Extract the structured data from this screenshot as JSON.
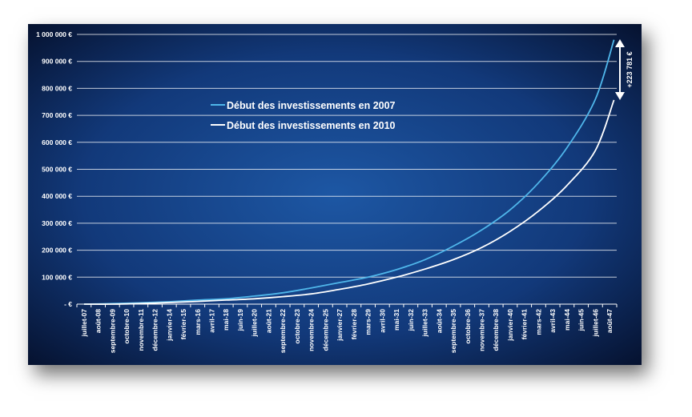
{
  "chart_data": {
    "type": "line",
    "title": "",
    "xlabel": "",
    "ylabel": "",
    "ylim": [
      0,
      1000000
    ],
    "grid": true,
    "legend_placement": "center-left",
    "y_ticks": [
      "1 000 000 €",
      "900 000 €",
      "800 000 €",
      "700 000 €",
      "600 000 €",
      "500 000 €",
      "400 000 €",
      "300 000 €",
      "200 000 €",
      "100 000 €",
      "- €"
    ],
    "x_ticks": [
      "juillet-07",
      "août-08",
      "septembre-09",
      "octobre-10",
      "novembre-11",
      "décembre-12",
      "janvier-14",
      "février-15",
      "mars-16",
      "avril-17",
      "mai-18",
      "juin-19",
      "juillet-20",
      "août-21",
      "septembre-22",
      "octobre-23",
      "novembre-24",
      "décembre-25",
      "janvier-27",
      "février-28",
      "mars-29",
      "avril-30",
      "mai-31",
      "juin-32",
      "juillet-33",
      "août-34",
      "septembre-35",
      "octobre-36",
      "novembre-37",
      "décembre-38",
      "janvier-40",
      "février-41",
      "mars-42",
      "avril-43",
      "mai-44",
      "juin-45",
      "juillet-46",
      "août-47"
    ],
    "series": [
      {
        "name": "Début des investissements en 2007",
        "color": "#4fb6ea",
        "x": [
          "juillet-07",
          "septembre-09",
          "novembre-11",
          "janvier-14",
          "mars-16",
          "mai-18",
          "juillet-20",
          "septembre-22",
          "novembre-24",
          "janvier-27",
          "mars-29",
          "mai-31",
          "juillet-33",
          "septembre-35",
          "novembre-37",
          "janvier-40",
          "mars-42",
          "mai-44",
          "juillet-46",
          "décembre-47"
        ],
        "values": [
          0,
          2000,
          5000,
          9000,
          15000,
          20000,
          30000,
          42000,
          60000,
          80000,
          100000,
          128000,
          165000,
          215000,
          275000,
          350000,
          450000,
          580000,
          760000,
          980000
        ]
      },
      {
        "name": "Début des investissements en 2010",
        "color": "#ffffff",
        "x": [
          "juillet-07",
          "septembre-09",
          "novembre-11",
          "janvier-14",
          "mars-16",
          "mai-18",
          "juillet-20",
          "septembre-22",
          "novembre-24",
          "janvier-27",
          "mars-29",
          "mai-31",
          "juillet-33",
          "septembre-35",
          "novembre-37",
          "janvier-40",
          "mars-42",
          "mai-44",
          "juillet-46",
          "décembre-47"
        ],
        "values": [
          0,
          0,
          2500,
          6000,
          10000,
          15000,
          20000,
          28000,
          38000,
          55000,
          75000,
          100000,
          130000,
          165000,
          210000,
          270000,
          345000,
          440000,
          570000,
          757000
        ]
      }
    ],
    "annotations": [
      {
        "text": "+223 781 €",
        "orientation": "vertical",
        "arrow": "double",
        "from": 757000,
        "to": 980000
      }
    ]
  }
}
